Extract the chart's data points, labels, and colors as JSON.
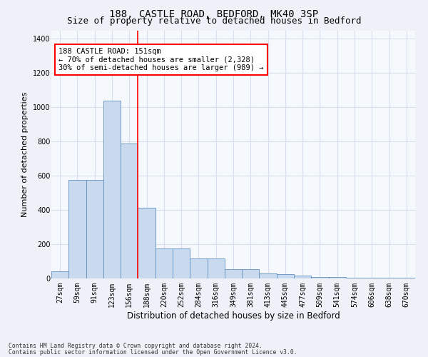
{
  "title1": "188, CASTLE ROAD, BEDFORD, MK40 3SP",
  "title2": "Size of property relative to detached houses in Bedford",
  "xlabel": "Distribution of detached houses by size in Bedford",
  "ylabel": "Number of detached properties",
  "categories": [
    "27sqm",
    "59sqm",
    "91sqm",
    "123sqm",
    "156sqm",
    "188sqm",
    "220sqm",
    "252sqm",
    "284sqm",
    "316sqm",
    "349sqm",
    "381sqm",
    "413sqm",
    "445sqm",
    "477sqm",
    "509sqm",
    "541sqm",
    "574sqm",
    "606sqm",
    "638sqm",
    "670sqm"
  ],
  "values": [
    40,
    575,
    575,
    1040,
    790,
    415,
    175,
    175,
    115,
    115,
    55,
    55,
    30,
    25,
    15,
    10,
    8,
    5,
    5,
    3,
    3
  ],
  "bar_color": "#c9d9ee",
  "bar_edge_color": "#6090c0",
  "red_line_x": 4.5,
  "annotation_text": "188 CASTLE ROAD: 151sqm\n← 70% of detached houses are smaller (2,328)\n30% of semi-detached houses are larger (989) →",
  "annotation_box_color": "white",
  "annotation_box_edge": "red",
  "footer1": "Contains HM Land Registry data © Crown copyright and database right 2024.",
  "footer2": "Contains public sector information licensed under the Open Government Licence v3.0.",
  "ylim": [
    0,
    1450
  ],
  "yticks": [
    0,
    200,
    400,
    600,
    800,
    1000,
    1200,
    1400
  ],
  "bg_color": "#eef2f8",
  "plot_bg_color": "#f5f8fd",
  "grid_color": "#d8e0ec",
  "title1_fontsize": 10,
  "title2_fontsize": 9,
  "tick_fontsize": 7,
  "ylabel_fontsize": 8,
  "xlabel_fontsize": 8.5,
  "footer_fontsize": 5.8,
  "annot_fontsize": 7.5
}
